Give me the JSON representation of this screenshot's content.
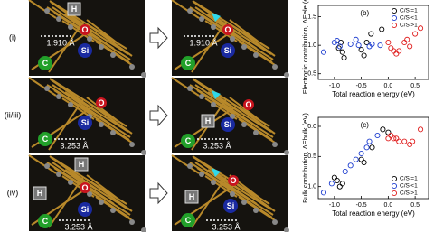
{
  "panels": [
    {
      "label": "(i)",
      "before": {
        "atoms": [
          "H",
          "O",
          "Si",
          "C"
        ],
        "distance": "1.910 Å"
      },
      "after": {
        "atoms": [
          "O",
          "Si",
          "C"
        ],
        "distance": "1.910 Å"
      }
    },
    {
      "label": "(ii/iii)",
      "before": {
        "atoms": [
          "O",
          "Si",
          "C"
        ],
        "distance": "3.253 Å"
      },
      "after": {
        "atoms": [
          "H",
          "O",
          "Si",
          "C"
        ],
        "distance": "3.253 Å"
      }
    },
    {
      "label": "(iv)",
      "before": {
        "atoms": [
          "H",
          "O",
          "H",
          "Si",
          "C"
        ],
        "distance": "3.253 Å"
      },
      "after": {
        "atoms": [
          "O",
          "H",
          "Si",
          "C"
        ],
        "distance": "3.253 Å"
      }
    }
  ],
  "chart_data": [
    {
      "type": "scatter",
      "panel_label": "(b)",
      "xlabel": "Total reaction energy (eV)",
      "ylabel": "Electronic contribution, ΔEele (eV)",
      "xlim": [
        -1.3,
        0.75
      ],
      "ylim": [
        0.4,
        1.7
      ],
      "xticks": [
        {
          "value": -1,
          "label": "-1.0"
        },
        -0.5,
        {
          "value": 0,
          "label": "0.0"
        },
        0.5
      ],
      "yticks": [
        0.5,
        {
          "value": 1,
          "label": "1.0"
        },
        1.5
      ],
      "legend": "upper right",
      "series": [
        {
          "name": "C/Si=1",
          "color": "#000000",
          "x": [
            -0.92,
            -0.88,
            -0.85,
            -0.82,
            -0.5,
            -0.45,
            -0.4,
            -0.32,
            -0.12
          ],
          "y": [
            0.95,
            1.05,
            0.88,
            0.78,
            0.92,
            0.82,
            1.05,
            1.2,
            1.28
          ]
        },
        {
          "name": "C/Si<1",
          "color": "#1f3fd0",
          "x": [
            -1.2,
            -1.0,
            -0.95,
            -0.9,
            -0.7,
            -0.6,
            -0.55,
            -0.35,
            -0.3,
            -0.15
          ],
          "y": [
            0.88,
            1.05,
            1.08,
            0.98,
            1.02,
            1.1,
            1.0,
            0.98,
            1.02,
            1.0
          ]
        },
        {
          "name": "C/Si>1",
          "color": "#e02020",
          "x": [
            0.0,
            0.05,
            0.1,
            0.15,
            0.2,
            0.3,
            0.35,
            0.4,
            0.5,
            0.6
          ],
          "y": [
            1.05,
            0.95,
            0.9,
            0.85,
            0.9,
            1.05,
            1.1,
            0.98,
            1.2,
            1.3
          ]
        }
      ]
    },
    {
      "type": "scatter",
      "panel_label": "(c)",
      "xlabel": "Total reaction energy (eV)",
      "ylabel": "Bulk contribution, ΔEbulk (eV)",
      "xlim": [
        -1.3,
        0.75
      ],
      "ylim": [
        -1.2,
        0.15
      ],
      "xticks": [
        {
          "value": -1,
          "label": "-1.0"
        },
        -0.5,
        {
          "value": 0,
          "label": "0.0"
        },
        0.5
      ],
      "yticks": [
        {
          "value": -1,
          "label": "-1.0"
        },
        -0.5,
        {
          "value": 0,
          "label": "0.0"
        }
      ],
      "legend": "lower right",
      "series": [
        {
          "name": "C/Si=1",
          "color": "#000000",
          "x": [
            -1.0,
            -0.95,
            -0.9,
            -0.85,
            -0.5,
            -0.45,
            -0.3,
            -0.1,
            0.0
          ],
          "y": [
            -0.85,
            -0.9,
            -1.0,
            -0.95,
            -0.55,
            -0.6,
            -0.35,
            -0.05,
            -0.1
          ]
        },
        {
          "name": "C/Si<1",
          "color": "#1f3fd0",
          "x": [
            -1.2,
            -1.05,
            -0.8,
            -0.7,
            -0.6,
            -0.5,
            -0.4,
            -0.35,
            -0.2
          ],
          "y": [
            -1.1,
            -0.95,
            -0.75,
            -0.65,
            -0.55,
            -0.45,
            -0.35,
            -0.25,
            -0.15
          ]
        },
        {
          "name": "C/Si>1",
          "color": "#e02020",
          "x": [
            0.0,
            0.05,
            0.1,
            0.15,
            0.2,
            0.3,
            0.4,
            0.45,
            0.6
          ],
          "y": [
            -0.2,
            -0.15,
            -0.2,
            -0.2,
            -0.25,
            -0.25,
            -0.3,
            -0.25,
            -0.05
          ]
        }
      ]
    }
  ]
}
